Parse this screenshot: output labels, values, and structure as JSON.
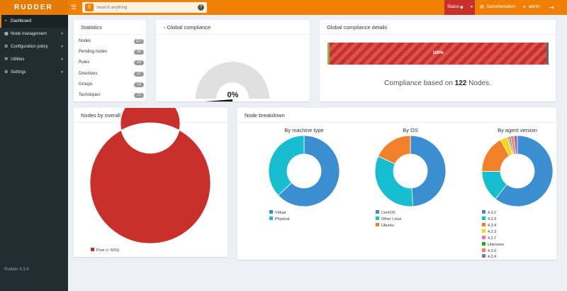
{
  "app": {
    "brand": "RUDDER",
    "version": "Rudder 4.3.4"
  },
  "topbar": {
    "search_placeholder": "Search anything",
    "status_label": "Status",
    "documentation_label": "Documentation",
    "user_label": "admin"
  },
  "sidebar": {
    "items": [
      {
        "label": "Dashboard",
        "icon": "dashboard-icon",
        "active": true
      },
      {
        "label": "Node management",
        "icon": "sitemap-icon"
      },
      {
        "label": "Configuration policy",
        "icon": "gears-icon"
      },
      {
        "label": "Utilities",
        "icon": "wrench-icon"
      },
      {
        "label": "Settings",
        "icon": "gear-icon"
      }
    ]
  },
  "statistics": {
    "title": "Statistics",
    "rows": [
      {
        "label": "Nodes",
        "value": "127"
      },
      {
        "label": "Pending nodes",
        "value": "34"
      },
      {
        "label": "Rules",
        "value": "14"
      },
      {
        "label": "Directives",
        "value": "27"
      },
      {
        "label": "Groups",
        "value": "13"
      },
      {
        "label": "Techniques",
        "value": "71"
      }
    ]
  },
  "global_compliance": {
    "title": "Global compliance",
    "value": "0%",
    "gauge_fraction": 0
  },
  "compliance_details": {
    "title": "Global compliance details",
    "bar_label": "100%",
    "text_prefix": "Compliance based on",
    "node_count": "122",
    "text_suffix": "Nodes.",
    "colors": {
      "bar": "#c9302c",
      "stripe": "#d9534f",
      "left_edge": "#8bb546",
      "right_edge": "#666666"
    }
  },
  "nodes_by_compliance": {
    "title": "Nodes by overall compliance",
    "legend": [
      {
        "label": "Poor (< 50%)",
        "color": "#c9302c"
      }
    ]
  },
  "node_breakdown": {
    "title": "Node breakdown",
    "machine": {
      "title": "By machine type",
      "legend": [
        {
          "label": "Virtual",
          "color": "#3b8fd0"
        },
        {
          "label": "Physical",
          "color": "#17becf"
        }
      ]
    },
    "os": {
      "title": "By OS",
      "legend": [
        {
          "label": "CentOS",
          "color": "#3b8fd0"
        },
        {
          "label": "Other Linux",
          "color": "#17becf"
        },
        {
          "label": "Ubuntu",
          "color": "#f2802a"
        }
      ]
    },
    "agent": {
      "title": "By agent version",
      "legend": [
        {
          "label": "4.3.2",
          "color": "#3b8fd0"
        },
        {
          "label": "4.3.3",
          "color": "#17becf"
        },
        {
          "label": "4.3.4",
          "color": "#f2802a"
        },
        {
          "label": "4.2.3",
          "color": "#f5d90a"
        },
        {
          "label": "4.2.7",
          "color": "#e377c2"
        },
        {
          "label": "Unknown",
          "color": "#2ca02c"
        },
        {
          "label": "4.2.6",
          "color": "#ff7f50"
        },
        {
          "label": "4.2.4",
          "color": "#9467bd"
        }
      ]
    }
  },
  "chart_data": [
    {
      "type": "pie",
      "title": "Nodes by overall compliance",
      "categories": [
        "Poor (< 50%)"
      ],
      "values": [
        122
      ],
      "colors": [
        "#c9302c"
      ]
    },
    {
      "type": "pie",
      "title": "By machine type",
      "categories": [
        "Virtual",
        "Physical"
      ],
      "values": [
        80,
        47
      ],
      "colors": [
        "#3b8fd0",
        "#17becf"
      ]
    },
    {
      "type": "pie",
      "title": "By OS",
      "categories": [
        "CentOS",
        "Other Linux",
        "Ubuntu"
      ],
      "values": [
        62,
        42,
        23
      ],
      "colors": [
        "#3b8fd0",
        "#17becf",
        "#f2802a"
      ]
    },
    {
      "type": "pie",
      "title": "By agent version",
      "categories": [
        "4.3.2",
        "4.3.3",
        "4.3.4",
        "4.2.3",
        "4.2.7",
        "Unknown",
        "4.2.6",
        "4.2.4"
      ],
      "values": [
        77,
        18,
        22,
        4,
        1,
        1,
        2,
        2
      ],
      "colors": [
        "#3b8fd0",
        "#17becf",
        "#f2802a",
        "#f5d90a",
        "#e377c2",
        "#2ca02c",
        "#ff7f50",
        "#9467bd"
      ]
    }
  ]
}
